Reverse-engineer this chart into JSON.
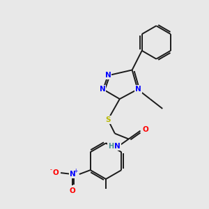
{
  "background_color": "#e8e8e8",
  "bond_color": "#1a1a1a",
  "atom_colors": {
    "N": "#0000ff",
    "O": "#ff0000",
    "S": "#b8b800",
    "H": "#4a9090",
    "C": "#1a1a1a"
  },
  "figsize": [
    3.0,
    3.0
  ],
  "dpi": 100,
  "lw": 1.4,
  "fs": 7.5
}
